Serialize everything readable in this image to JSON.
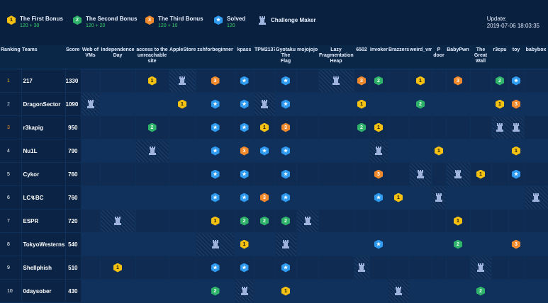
{
  "legend": {
    "first": {
      "title": "The First Bonus",
      "sub": "120 + 30"
    },
    "second": {
      "title": "The Second Bonus",
      "sub": "120 + 20"
    },
    "third": {
      "title": "The Third Bonus",
      "sub": "120 + 10"
    },
    "solved": {
      "title": "Solved",
      "sub": "120"
    },
    "maker": {
      "title": "Challenge Maker"
    }
  },
  "icons": {
    "first": "1",
    "second": "2",
    "third": "3",
    "solved": "★"
  },
  "update": {
    "label": "Update:",
    "time": "2019-07-06 18:03:35"
  },
  "colors": {
    "gold": "#f4c012",
    "green": "#2fb36a",
    "orange": "#f08a2c",
    "blue": "#2f9bf0"
  },
  "columns": {
    "ranking": "Ranking",
    "teams": "Teams",
    "score": "Score",
    "challenges": [
      "Web of VMs",
      "Independence Day",
      "access to the unreachable site",
      "AppleStore",
      "zshforbeginner",
      "kpass",
      "TPM2137",
      "Gyotaku The Flag",
      "mojojojo",
      "Lazy Fragmentation Heap",
      "6502",
      "Invoker",
      "Brazzers",
      "weird_vm",
      "P door",
      "BabyPwn",
      "The Great Wall",
      "r3cpu",
      "toy",
      "babybox"
    ]
  },
  "rows": [
    {
      "rank": "1",
      "team": "217",
      "score": "1330",
      "cells": [
        "",
        "",
        "g",
        "m",
        "t",
        "v",
        "",
        "v",
        "",
        "m",
        "t",
        "s",
        "",
        "g",
        "",
        "t",
        "",
        "s",
        "v",
        ""
      ]
    },
    {
      "rank": "2",
      "team": "DragonSector",
      "score": "1090",
      "cells": [
        "m",
        "",
        "",
        "g",
        "v",
        "v",
        "m",
        "v",
        "",
        "",
        "g",
        "",
        "",
        "s",
        "",
        "",
        "",
        "g",
        "t",
        ""
      ]
    },
    {
      "rank": "3",
      "team": "r3kapig",
      "score": "950",
      "cells": [
        "",
        "",
        "s",
        "",
        "v",
        "v",
        "g",
        "t",
        "",
        "",
        "s",
        "g",
        "",
        "",
        "",
        "",
        "",
        "m",
        "m",
        ""
      ]
    },
    {
      "rank": "4",
      "team": "Nu1L",
      "score": "790",
      "cells": [
        "",
        "",
        "m",
        "",
        "v",
        "t",
        "v",
        "v",
        "",
        "",
        "",
        "m",
        "",
        "",
        "g",
        "",
        "",
        "",
        "g",
        ""
      ]
    },
    {
      "rank": "5",
      "team": "Cykor",
      "score": "760",
      "cells": [
        "",
        "",
        "",
        "",
        "v",
        "v",
        "",
        "v",
        "",
        "",
        "",
        "t",
        "",
        "m",
        "",
        "m",
        "g",
        "",
        "v",
        ""
      ]
    },
    {
      "rank": "6",
      "team": "LC↯BC",
      "score": "760",
      "cells": [
        "",
        "",
        "",
        "",
        "v",
        "v",
        "t",
        "v",
        "",
        "",
        "",
        "v",
        "g",
        "",
        "m",
        "",
        "",
        "",
        "",
        "m"
      ]
    },
    {
      "rank": "7",
      "team": "ESPR",
      "score": "720",
      "cells": [
        "",
        "m",
        "",
        "",
        "g",
        "s",
        "s",
        "s",
        "m",
        "",
        "",
        "",
        "",
        "",
        "",
        "g",
        "",
        "",
        "",
        ""
      ]
    },
    {
      "rank": "8",
      "team": "TokyoWesterns",
      "score": "540",
      "cells": [
        "",
        "",
        "",
        "",
        "m",
        "g",
        "",
        "m",
        "",
        "",
        "",
        "v",
        "",
        "",
        "",
        "s",
        "",
        "",
        "t",
        ""
      ]
    },
    {
      "rank": "9",
      "team": "Shellphish",
      "score": "510",
      "cells": [
        "",
        "g",
        "",
        "",
        "v",
        "v",
        "",
        "v",
        "",
        "",
        "m",
        "",
        "",
        "",
        "",
        "",
        "m",
        "",
        "",
        ""
      ]
    },
    {
      "rank": "10",
      "team": "0daysober",
      "score": "430",
      "cells": [
        "",
        "",
        "",
        "",
        "s",
        "m",
        "",
        "g",
        "",
        "",
        "",
        "",
        "m",
        "",
        "",
        "",
        "s",
        "",
        "",
        ""
      ]
    }
  ]
}
